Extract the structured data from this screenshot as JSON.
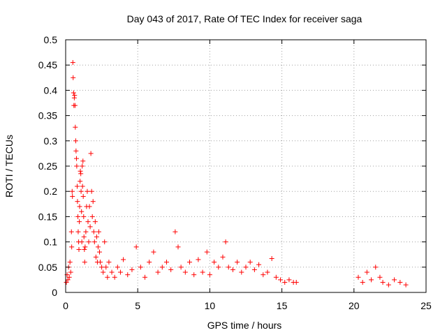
{
  "chart_data": {
    "type": "scatter",
    "title": "Day 043 of 2017, Rate Of TEC Index for receiver saga",
    "xlabel": "GPS time / hours",
    "ylabel": "ROTI / TECUs",
    "xlim": [
      0,
      25
    ],
    "ylim": [
      0,
      0.5
    ],
    "x_ticks": [
      0,
      5,
      10,
      15,
      20,
      25
    ],
    "x_tick_labels": [
      "0",
      "5",
      "10",
      "15",
      "20",
      "25"
    ],
    "y_ticks": [
      0,
      0.05,
      0.1,
      0.15,
      0.2,
      0.25,
      0.3,
      0.35,
      0.4,
      0.45,
      0.5
    ],
    "y_tick_labels": [
      "0",
      "0.05",
      "0.1",
      "0.15",
      "0.2",
      "0.25",
      "0.3",
      "0.35",
      "0.4",
      "0.45",
      "0.5"
    ],
    "grid": true,
    "marker": "+",
    "color": "#ff0000",
    "series": [
      {
        "name": "ROTI",
        "points": [
          [
            0.05,
            0.02
          ],
          [
            0.1,
            0.035
          ],
          [
            0.15,
            0.025
          ],
          [
            0.2,
            0.05
          ],
          [
            0.25,
            0.03
          ],
          [
            0.3,
            0.06
          ],
          [
            0.35,
            0.04
          ],
          [
            0.4,
            0.12
          ],
          [
            0.42,
            0.09
          ],
          [
            0.45,
            0.2
          ],
          [
            0.47,
            0.19
          ],
          [
            0.5,
            0.455
          ],
          [
            0.52,
            0.425
          ],
          [
            0.55,
            0.395
          ],
          [
            0.57,
            0.37
          ],
          [
            0.6,
            0.385
          ],
          [
            0.62,
            0.39
          ],
          [
            0.65,
            0.37
          ],
          [
            0.67,
            0.327
          ],
          [
            0.7,
            0.3
          ],
          [
            0.72,
            0.28
          ],
          [
            0.75,
            0.265
          ],
          [
            0.77,
            0.25
          ],
          [
            0.8,
            0.21
          ],
          [
            0.82,
            0.18
          ],
          [
            0.85,
            0.15
          ],
          [
            0.87,
            0.12
          ],
          [
            0.9,
            0.1
          ],
          [
            0.92,
            0.085
          ],
          [
            0.95,
            0.14
          ],
          [
            0.97,
            0.17
          ],
          [
            1.0,
            0.22
          ],
          [
            1.02,
            0.24
          ],
          [
            1.05,
            0.235
          ],
          [
            1.07,
            0.2
          ],
          [
            1.1,
            0.16
          ],
          [
            1.12,
            0.1
          ],
          [
            1.15,
            0.25
          ],
          [
            1.17,
            0.21
          ],
          [
            1.2,
            0.26
          ],
          [
            1.22,
            0.19
          ],
          [
            1.25,
            0.15
          ],
          [
            1.27,
            0.11
          ],
          [
            1.3,
            0.085
          ],
          [
            1.32,
            0.06
          ],
          [
            1.35,
            0.09
          ],
          [
            1.4,
            0.12
          ],
          [
            1.45,
            0.17
          ],
          [
            1.5,
            0.2
          ],
          [
            1.55,
            0.14
          ],
          [
            1.6,
            0.1
          ],
          [
            1.65,
            0.17
          ],
          [
            1.7,
            0.13
          ],
          [
            1.75,
            0.275
          ],
          [
            1.8,
            0.2
          ],
          [
            1.85,
            0.15
          ],
          [
            1.9,
            0.18
          ],
          [
            1.95,
            0.12
          ],
          [
            2.0,
            0.1
          ],
          [
            2.05,
            0.14
          ],
          [
            2.1,
            0.07
          ],
          [
            2.15,
            0.11
          ],
          [
            2.2,
            0.06
          ],
          [
            2.25,
            0.09
          ],
          [
            2.3,
            0.12
          ],
          [
            2.35,
            0.08
          ],
          [
            2.4,
            0.06
          ],
          [
            2.5,
            0.05
          ],
          [
            2.6,
            0.04
          ],
          [
            2.7,
            0.1
          ],
          [
            2.8,
            0.05
          ],
          [
            2.9,
            0.03
          ],
          [
            3.0,
            0.06
          ],
          [
            3.2,
            0.04
          ],
          [
            3.4,
            0.03
          ],
          [
            3.6,
            0.05
          ],
          [
            3.8,
            0.04
          ],
          [
            4.0,
            0.065
          ],
          [
            4.3,
            0.035
          ],
          [
            4.6,
            0.045
          ],
          [
            4.9,
            0.09
          ],
          [
            5.2,
            0.05
          ],
          [
            5.5,
            0.03
          ],
          [
            5.8,
            0.06
          ],
          [
            6.1,
            0.08
          ],
          [
            6.4,
            0.04
          ],
          [
            6.7,
            0.05
          ],
          [
            7.0,
            0.06
          ],
          [
            7.3,
            0.045
          ],
          [
            7.6,
            0.12
          ],
          [
            7.8,
            0.09
          ],
          [
            8.0,
            0.05
          ],
          [
            8.3,
            0.04
          ],
          [
            8.6,
            0.06
          ],
          [
            8.9,
            0.035
          ],
          [
            9.2,
            0.065
          ],
          [
            9.5,
            0.04
          ],
          [
            9.8,
            0.08
          ],
          [
            10.0,
            0.035
          ],
          [
            10.3,
            0.06
          ],
          [
            10.6,
            0.05
          ],
          [
            10.9,
            0.07
          ],
          [
            11.1,
            0.1
          ],
          [
            11.3,
            0.05
          ],
          [
            11.6,
            0.045
          ],
          [
            11.9,
            0.06
          ],
          [
            12.2,
            0.04
          ],
          [
            12.5,
            0.05
          ],
          [
            12.8,
            0.06
          ],
          [
            13.1,
            0.045
          ],
          [
            13.4,
            0.055
          ],
          [
            13.7,
            0.035
          ],
          [
            14.0,
            0.04
          ],
          [
            14.3,
            0.067
          ],
          [
            14.6,
            0.03
          ],
          [
            14.9,
            0.025
          ],
          [
            15.2,
            0.02
          ],
          [
            15.5,
            0.025
          ],
          [
            15.8,
            0.02
          ],
          [
            16.0,
            0.02
          ],
          [
            20.3,
            0.03
          ],
          [
            20.6,
            0.02
          ],
          [
            20.9,
            0.04
          ],
          [
            21.2,
            0.025
          ],
          [
            21.5,
            0.05
          ],
          [
            21.8,
            0.03
          ],
          [
            22.0,
            0.02
          ],
          [
            22.4,
            0.015
          ],
          [
            22.8,
            0.025
          ],
          [
            23.2,
            0.02
          ],
          [
            23.6,
            0.015
          ]
        ]
      }
    ]
  }
}
